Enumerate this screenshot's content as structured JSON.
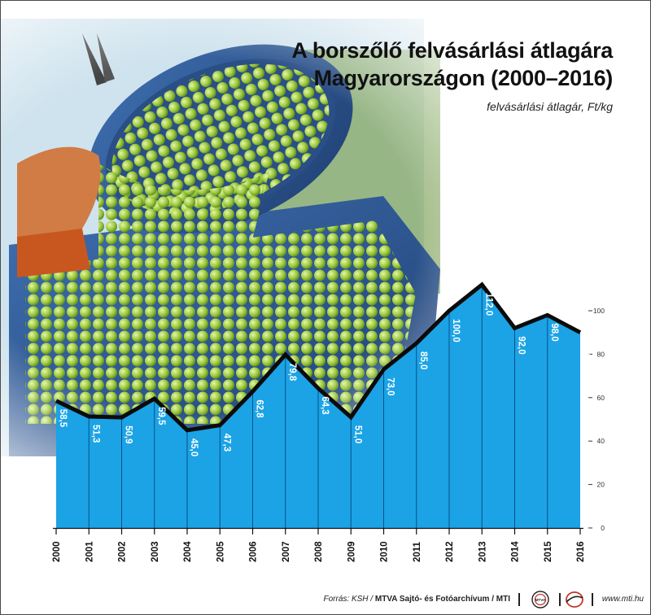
{
  "title_line1": "A borszőlő felvásárlási átlagára",
  "title_line2": "Magyarországon (2000–2016)",
  "subtitle": "felvásárlási átlagár, Ft/kg",
  "chart_data": {
    "type": "area",
    "title": "A borszőlő felvásárlási átlagára Magyarországon (2000–2016)",
    "ylabel": "felvásárlási átlagár, Ft/kg",
    "x": [
      "2000",
      "2001",
      "2002",
      "2003",
      "2004",
      "2005",
      "2006",
      "2007",
      "2008",
      "2009",
      "2010",
      "2011",
      "2012",
      "2013",
      "2014",
      "2015",
      "2016"
    ],
    "values": [
      58.5,
      51.3,
      50.9,
      59.5,
      45.0,
      47.3,
      62.8,
      79.8,
      64.3,
      51.0,
      73.0,
      85.0,
      100.0,
      112.0,
      92.0,
      98.0,
      90.0
    ],
    "labels": [
      "58,5",
      "51,3",
      "50,9",
      "59,5",
      "45,0",
      "47,3",
      "62,8",
      "79,8",
      "64,3",
      "51,0",
      "73,0",
      "85,0",
      "100,0",
      "112,0",
      "92,0",
      "98,0",
      "90,0"
    ],
    "yticks": [
      "0",
      "20",
      "40",
      "60",
      "80",
      "100"
    ],
    "ylim": [
      0,
      100
    ],
    "fill_color": "#1ba3e6",
    "line_color": "#0b0b0b"
  },
  "footer": {
    "source_prefix": "Forrás: KSH / ",
    "source_org": "MTVA Sajtó- és Fotóarchívum / MTI",
    "url": "www.mti.hu",
    "logo1_text": "MTVA"
  }
}
